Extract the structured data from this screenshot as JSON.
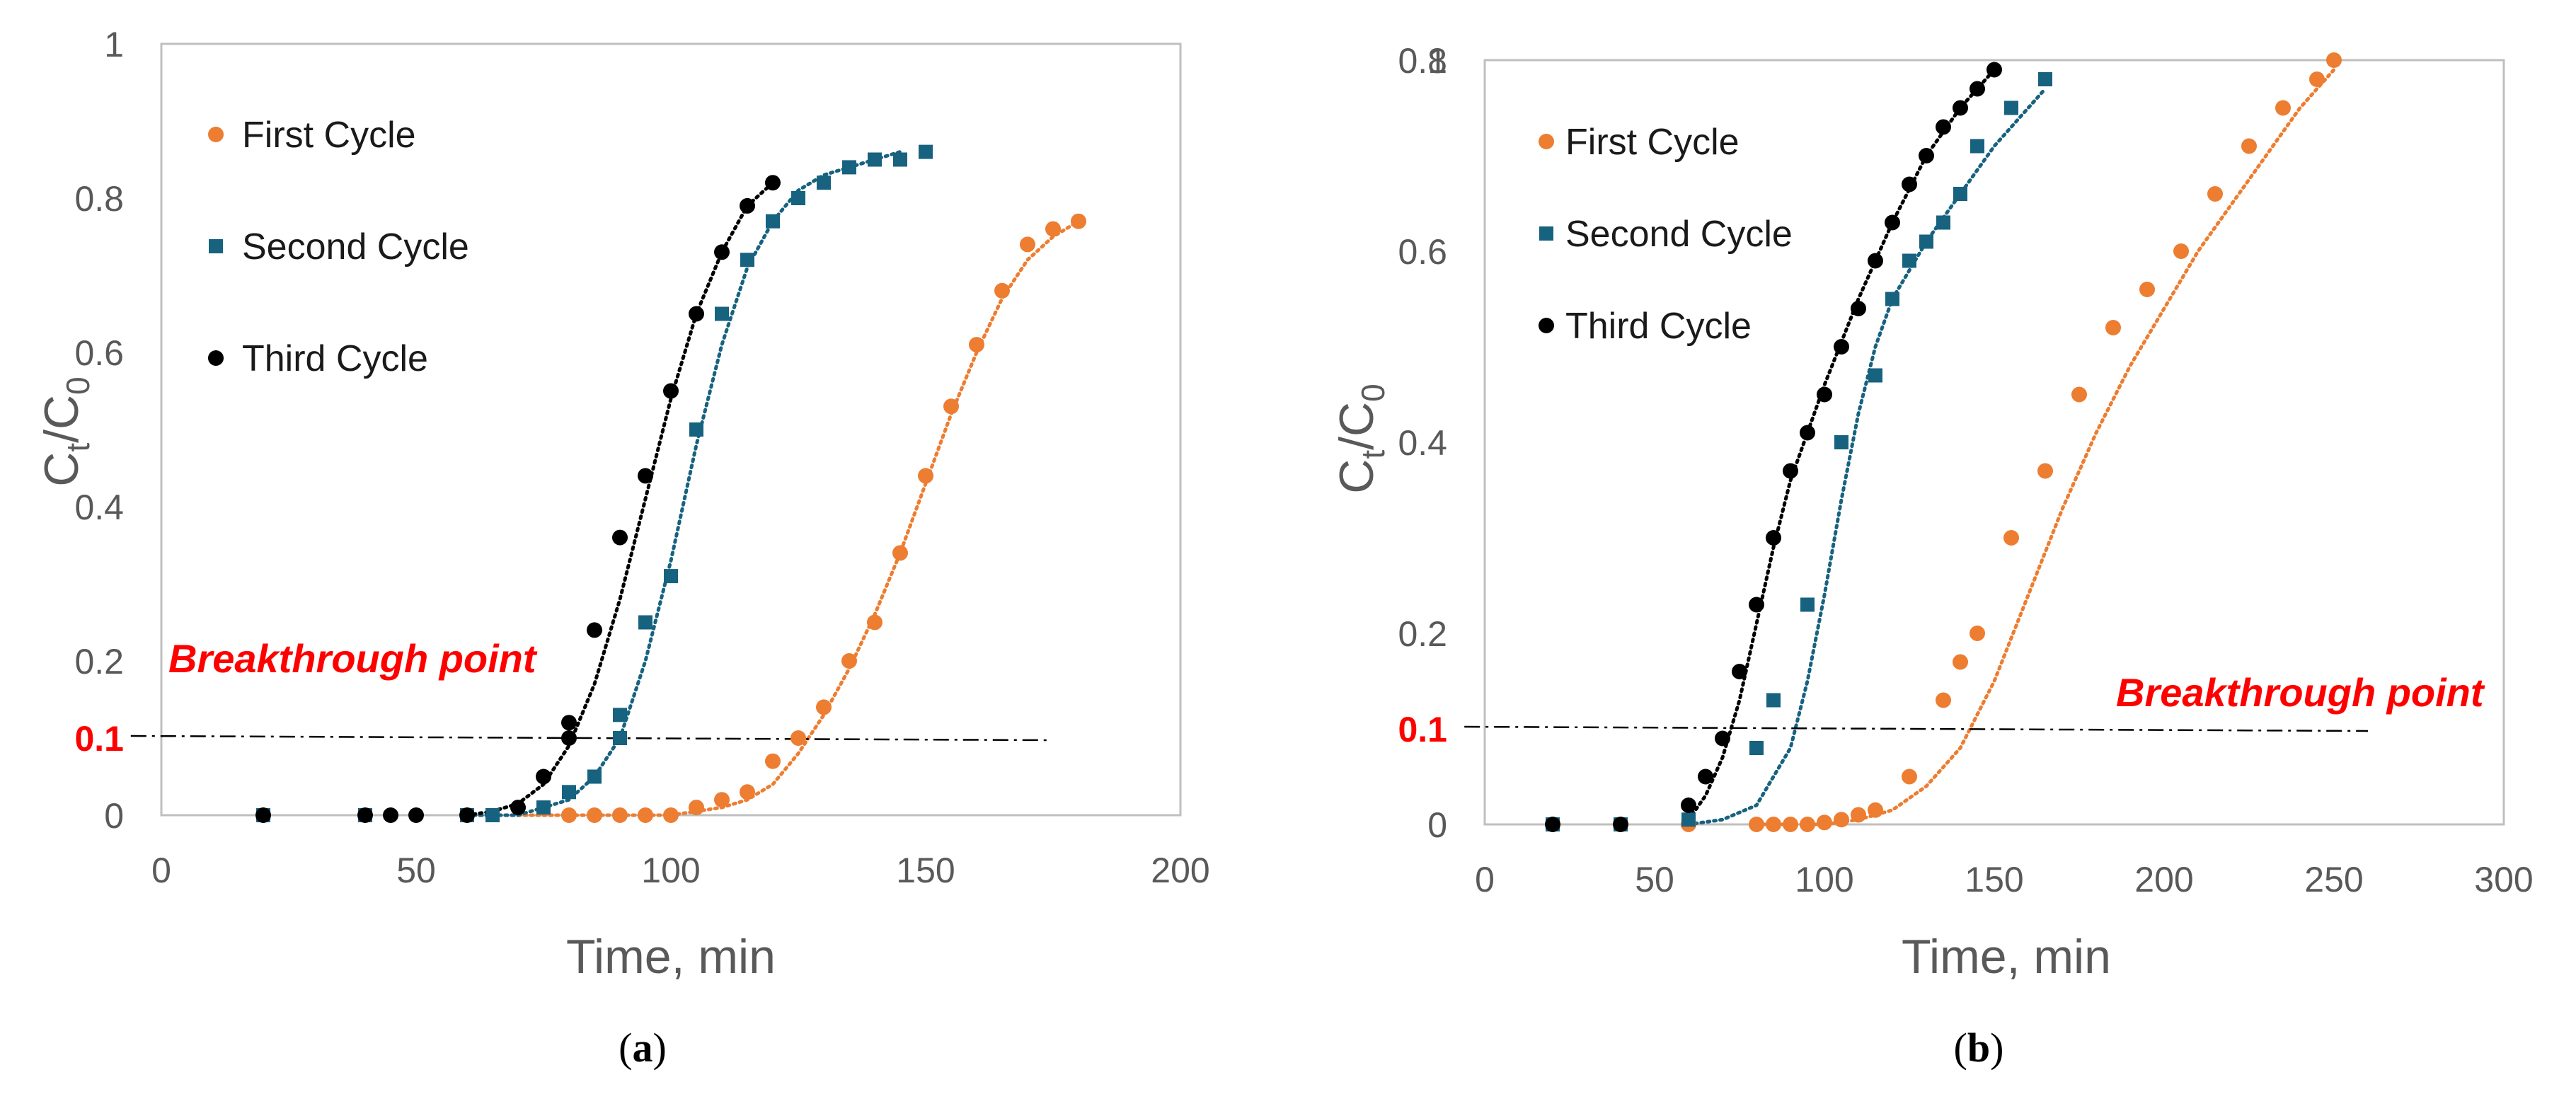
{
  "colors": {
    "first": "#ED7D31",
    "second": "#17627F",
    "third": "#000000",
    "threshold_text": "#FF0000",
    "grid": "#BFBFBF",
    "text": "#595959"
  },
  "chart_data": [
    {
      "panel": "a",
      "caption": "(a)",
      "type": "scatter",
      "xlabel": "Time, min",
      "ylabel": "Ct/C0",
      "ylabel_main": "C",
      "ylabel_sub1": "t",
      "ylabel_slash": "/C",
      "ylabel_sub2": "0",
      "xlim": [
        0,
        200
      ],
      "ylim": [
        0,
        1
      ],
      "xticks": [
        0,
        50,
        100,
        150,
        200
      ],
      "xtick_labels": [
        "0",
        "50",
        "100",
        "150",
        "200"
      ],
      "yticks": [
        0,
        0.2,
        0.4,
        0.6,
        0.8,
        1
      ],
      "ytick_labels": [
        "0",
        "0.2",
        "0.4",
        "0.6",
        "0.8",
        "1"
      ],
      "threshold": {
        "value": 0.1,
        "label": "0.1",
        "x_range": [
          -6,
          174
        ]
      },
      "annotation": "Breakthrough point",
      "legend": {
        "placement": "top-left",
        "entries": [
          "First Cycle",
          "Second Cycle",
          "Third Cycle"
        ]
      },
      "series": [
        {
          "name": "First Cycle",
          "marker": "circle",
          "x": [
            80,
            85,
            90,
            95,
            100,
            105,
            110,
            115,
            120,
            125,
            130,
            135,
            140,
            145,
            150,
            155,
            160,
            165,
            170,
            175,
            180
          ],
          "y": [
            0,
            0,
            0,
            0,
            0,
            0.01,
            0.02,
            0.03,
            0.07,
            0.1,
            0.14,
            0.2,
            0.25,
            0.34,
            0.44,
            0.53,
            0.61,
            0.68,
            0.74,
            0.76,
            0.77
          ],
          "fit_x": [
            60,
            70,
            80,
            90,
            100,
            105,
            110,
            115,
            120,
            125,
            130,
            135,
            140,
            145,
            150,
            155,
            160,
            165,
            170,
            175,
            180
          ],
          "fit_y": [
            0,
            0,
            0,
            0,
            0,
            0.005,
            0.01,
            0.02,
            0.04,
            0.08,
            0.13,
            0.19,
            0.26,
            0.34,
            0.43,
            0.52,
            0.6,
            0.67,
            0.72,
            0.75,
            0.77
          ]
        },
        {
          "name": "Second Cycle",
          "marker": "square",
          "x": [
            20,
            40,
            60,
            65,
            75,
            80,
            85,
            90,
            90,
            95,
            100,
            105,
            110,
            115,
            120,
            125,
            130,
            135,
            140,
            145,
            150
          ],
          "y": [
            0,
            0,
            0,
            0,
            0.01,
            0.03,
            0.05,
            0.1,
            0.13,
            0.25,
            0.31,
            0.5,
            0.65,
            0.72,
            0.77,
            0.8,
            0.82,
            0.84,
            0.85,
            0.85,
            0.86
          ],
          "fit_x": [
            60,
            70,
            75,
            80,
            85,
            90,
            95,
            100,
            105,
            110,
            115,
            120,
            125,
            130,
            135,
            140,
            145
          ],
          "fit_y": [
            0,
            0,
            0.01,
            0.02,
            0.05,
            0.1,
            0.2,
            0.33,
            0.48,
            0.61,
            0.71,
            0.77,
            0.81,
            0.83,
            0.84,
            0.85,
            0.86
          ]
        },
        {
          "name": "Third Cycle",
          "marker": "circle",
          "x": [
            20,
            40,
            45,
            50,
            60,
            70,
            75,
            80,
            80,
            85,
            90,
            95,
            100,
            105,
            110,
            115,
            120
          ],
          "y": [
            0,
            0,
            0,
            0,
            0,
            0.01,
            0.05,
            0.1,
            0.12,
            0.24,
            0.36,
            0.44,
            0.55,
            0.65,
            0.73,
            0.79,
            0.82
          ],
          "fit_x": [
            60,
            65,
            70,
            75,
            80,
            85,
            90,
            95,
            100,
            105,
            110,
            115,
            120
          ],
          "fit_y": [
            0,
            0.005,
            0.015,
            0.04,
            0.09,
            0.17,
            0.28,
            0.41,
            0.54,
            0.65,
            0.73,
            0.79,
            0.82
          ]
        }
      ]
    },
    {
      "panel": "b",
      "caption": "(b)",
      "type": "scatter",
      "xlabel": "Time, min",
      "ylabel": "Ct/C0",
      "ylabel_main": "C",
      "ylabel_sub1": "t",
      "ylabel_slash": "/C",
      "ylabel_sub2": "0",
      "xlim": [
        0,
        300
      ],
      "ylim": [
        0,
        0.8
      ],
      "xticks": [
        0,
        50,
        100,
        150,
        200,
        250,
        300
      ],
      "xtick_labels": [
        "0",
        "50",
        "100",
        "150",
        "200",
        "250",
        "300"
      ],
      "yticks": [
        0,
        0.2,
        0.4,
        0.6,
        0.8
      ],
      "ytick_labels": [
        "0",
        "0.2",
        "0.4",
        "0.6",
        "0.8"
      ],
      "yextra_label": "1",
      "threshold": {
        "value": 0.1,
        "label": "0.1",
        "x_range": [
          -6,
          260
        ]
      },
      "annotation": "Breakthrough point",
      "legend": {
        "placement": "top-left",
        "entries": [
          "First Cycle",
          "Second Cycle",
          "Third Cycle"
        ]
      },
      "series": [
        {
          "name": "First Cycle",
          "marker": "circle",
          "x": [
            60,
            80,
            85,
            90,
            95,
            100,
            105,
            110,
            115,
            125,
            135,
            140,
            145,
            155,
            165,
            175,
            185,
            195,
            205,
            215,
            225,
            235,
            245,
            250
          ],
          "y": [
            0,
            0,
            0,
            0,
            0,
            0.002,
            0.005,
            0.01,
            0.015,
            0.05,
            0.13,
            0.17,
            0.2,
            0.3,
            0.37,
            0.45,
            0.52,
            0.56,
            0.6,
            0.66,
            0.71,
            0.75,
            0.78,
            0.8
          ],
          "fit_x": [
            80,
            100,
            110,
            120,
            130,
            140,
            150,
            160,
            170,
            180,
            190,
            200,
            210,
            220,
            230,
            240,
            250
          ],
          "fit_y": [
            0,
            0,
            0.005,
            0.015,
            0.04,
            0.08,
            0.15,
            0.24,
            0.33,
            0.41,
            0.48,
            0.54,
            0.6,
            0.65,
            0.7,
            0.75,
            0.79
          ]
        },
        {
          "name": "Second Cycle",
          "marker": "square",
          "x": [
            20,
            40,
            60,
            80,
            85,
            95,
            105,
            115,
            120,
            125,
            130,
            135,
            140,
            145,
            155,
            165
          ],
          "y": [
            0,
            0,
            0.005,
            0.08,
            0.13,
            0.23,
            0.4,
            0.47,
            0.55,
            0.59,
            0.61,
            0.63,
            0.66,
            0.71,
            0.75,
            0.78
          ],
          "fit_x": [
            60,
            70,
            80,
            90,
            95,
            100,
            105,
            110,
            115,
            120,
            130,
            140,
            150,
            160,
            165
          ],
          "fit_y": [
            0,
            0.005,
            0.02,
            0.08,
            0.15,
            0.24,
            0.34,
            0.43,
            0.5,
            0.55,
            0.61,
            0.66,
            0.71,
            0.75,
            0.77
          ]
        },
        {
          "name": "Third Cycle",
          "marker": "circle",
          "x": [
            20,
            40,
            60,
            65,
            70,
            75,
            80,
            85,
            90,
            95,
            100,
            105,
            110,
            115,
            120,
            125,
            130,
            135,
            140,
            145,
            150
          ],
          "y": [
            0,
            0,
            0.02,
            0.05,
            0.09,
            0.16,
            0.23,
            0.3,
            0.37,
            0.41,
            0.45,
            0.5,
            0.54,
            0.59,
            0.63,
            0.67,
            0.7,
            0.73,
            0.75,
            0.77,
            0.79
          ],
          "fit_x": [
            60,
            65,
            70,
            75,
            80,
            85,
            90,
            95,
            100,
            110,
            120,
            130,
            140,
            150
          ],
          "fit_y": [
            0.005,
            0.03,
            0.07,
            0.13,
            0.21,
            0.29,
            0.36,
            0.41,
            0.46,
            0.55,
            0.63,
            0.7,
            0.75,
            0.79
          ]
        }
      ]
    }
  ]
}
